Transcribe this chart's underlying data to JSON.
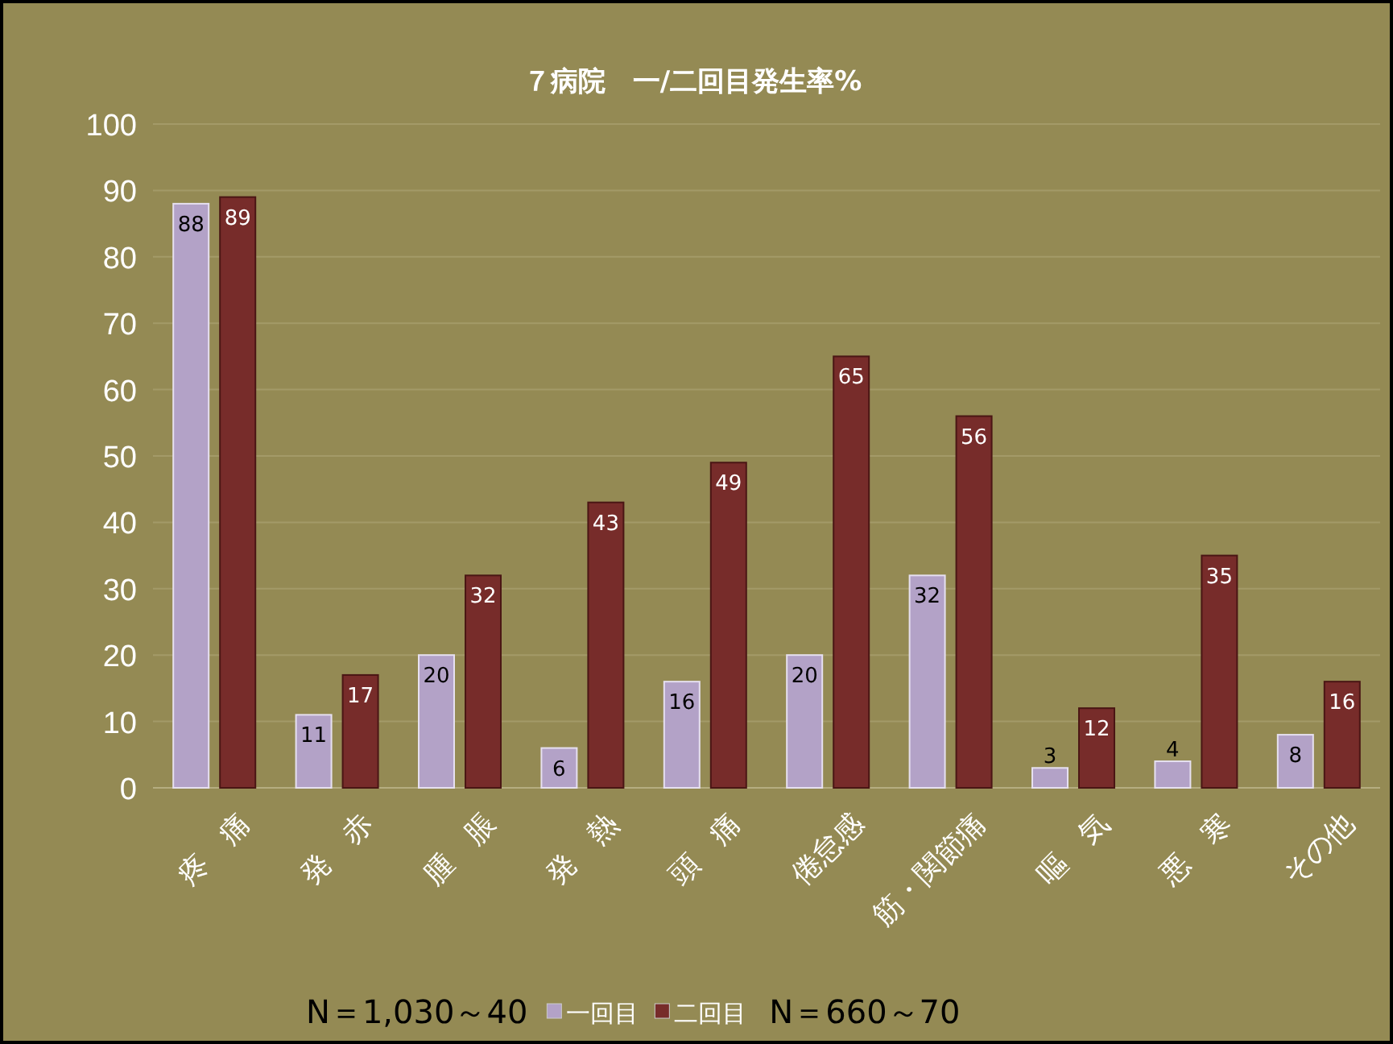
{
  "chart_data": {
    "type": "bar",
    "title": "７病院　一/二回目発生率%",
    "categories": [
      "疼　痛",
      "発　赤",
      "腫　脹",
      "発　熱",
      "頭　痛",
      "倦怠感",
      "筋・関節痛",
      "嘔　気",
      "悪　寒",
      "その他"
    ],
    "series": [
      {
        "name": "一回目",
        "color": "#b3a2c7",
        "values": [
          88,
          11,
          20,
          6,
          16,
          20,
          32,
          3,
          4,
          8
        ]
      },
      {
        "name": "二回目",
        "color": "#772c2a",
        "values": [
          89,
          17,
          32,
          43,
          49,
          65,
          56,
          12,
          35,
          16
        ]
      }
    ],
    "ylim": [
      0,
      100
    ],
    "yticks": [
      0,
      10,
      20,
      30,
      40,
      50,
      60,
      70,
      80,
      90,
      100
    ],
    "grid": "y",
    "data_labels": true,
    "legend": "bottom",
    "annotations": [
      "N＝1,030～40",
      "N＝660～70"
    ]
  }
}
